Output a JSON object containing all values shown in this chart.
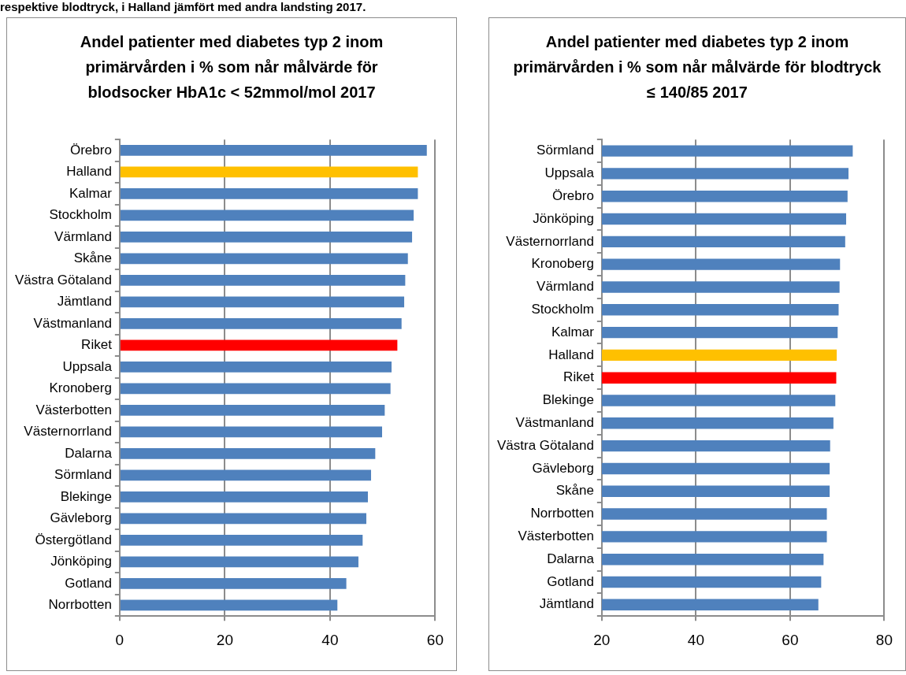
{
  "chart_data": [
    {
      "type": "bar",
      "orientation": "horizontal",
      "title": "Andel patienter med diabetes typ 2 inom primärvården i % som når målvärde för blodsocker HbA1c < 52mmol/mol 2017",
      "annotations": [
        "respektive blodtryck, i Halland jämfört med andra landsting 2017."
      ],
      "categories": [
        "Örebro",
        "Halland",
        "Kalmar",
        "Stockholm",
        "Värmland",
        "Skåne",
        "Västra Götaland",
        "Jämtland",
        "Västmanland",
        "Riket",
        "Uppsala",
        "Kronoberg",
        "Västerbotten",
        "Västernorrland",
        "Dalarna",
        "Sörmland",
        "Blekinge",
        "Gävleborg",
        "Östergötland",
        "Jönköping",
        "Gotland",
        "Norrbotten"
      ],
      "values": [
        58.4,
        56.7,
        56.7,
        55.9,
        55.6,
        54.8,
        54.3,
        54.1,
        53.6,
        52.8,
        51.7,
        51.5,
        50.4,
        49.9,
        48.6,
        47.8,
        47.2,
        46.9,
        46.2,
        45.4,
        43.1,
        41.4
      ],
      "colors": [
        "#4f81bd",
        "#ffc000",
        "#4f81bd",
        "#4f81bd",
        "#4f81bd",
        "#4f81bd",
        "#4f81bd",
        "#4f81bd",
        "#4f81bd",
        "#ff0000",
        "#4f81bd",
        "#4f81bd",
        "#4f81bd",
        "#4f81bd",
        "#4f81bd",
        "#4f81bd",
        "#4f81bd",
        "#4f81bd",
        "#4f81bd",
        "#4f81bd",
        "#4f81bd",
        "#4f81bd"
      ],
      "xlim": [
        0,
        60
      ],
      "xticks": [
        0,
        20,
        40,
        60
      ],
      "grid": "x",
      "legend": false
    },
    {
      "type": "bar",
      "orientation": "horizontal",
      "title": "Andel patienter med diabetes typ 2 inom primärvården i % som når målvärde för blodtryck ≤ 140/85 2017",
      "categories": [
        "Sörmland",
        "Uppsala",
        "Örebro",
        "Jönköping",
        "Västernorrland",
        "Kronoberg",
        "Värmland",
        "Stockholm",
        "Kalmar",
        "Halland",
        "Riket",
        "Blekinge",
        "Västmanland",
        "Västra Götaland",
        "Gävleborg",
        "Skåne",
        "Norrbotten",
        "Västerbotten",
        "Dalarna",
        "Gotland",
        "Jämtland"
      ],
      "values": [
        73.3,
        72.4,
        72.2,
        71.9,
        71.7,
        70.6,
        70.5,
        70.3,
        70.1,
        69.9,
        69.8,
        69.6,
        69.2,
        68.5,
        68.4,
        68.4,
        67.8,
        67.8,
        67.1,
        66.6,
        66.0
      ],
      "colors": [
        "#4f81bd",
        "#4f81bd",
        "#4f81bd",
        "#4f81bd",
        "#4f81bd",
        "#4f81bd",
        "#4f81bd",
        "#4f81bd",
        "#4f81bd",
        "#ffc000",
        "#ff0000",
        "#4f81bd",
        "#4f81bd",
        "#4f81bd",
        "#4f81bd",
        "#4f81bd",
        "#4f81bd",
        "#4f81bd",
        "#4f81bd",
        "#4f81bd",
        "#4f81bd"
      ],
      "xlim": [
        20,
        80
      ],
      "xticks": [
        20,
        40,
        60,
        80
      ],
      "grid": "x",
      "legend": false
    }
  ]
}
